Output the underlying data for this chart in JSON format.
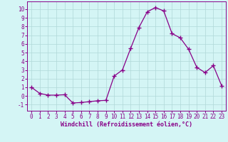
{
  "x": [
    0,
    1,
    2,
    3,
    4,
    5,
    6,
    7,
    8,
    9,
    10,
    11,
    12,
    13,
    14,
    15,
    16,
    17,
    18,
    19,
    20,
    21,
    22,
    23
  ],
  "y": [
    1.0,
    0.3,
    0.1,
    0.1,
    0.15,
    -0.8,
    -0.75,
    -0.65,
    -0.55,
    -0.5,
    2.3,
    3.0,
    5.5,
    7.9,
    9.7,
    10.2,
    9.8,
    7.2,
    6.7,
    5.4,
    3.3,
    2.7,
    3.5,
    1.2
  ],
  "line_color": "#880088",
  "marker": "+",
  "marker_size": 4,
  "marker_lw": 1.0,
  "bg_color": "#d4f5f5",
  "grid_color": "#b0d8d8",
  "xlabel": "Windchill (Refroidissement éolien,°C)",
  "xlabel_fontsize": 6.0,
  "yticks": [
    -1,
    0,
    1,
    2,
    3,
    4,
    5,
    6,
    7,
    8,
    9,
    10
  ],
  "xlim": [
    -0.5,
    23.5
  ],
  "ylim": [
    -1.7,
    10.9
  ],
  "tick_fontsize": 5.5,
  "line_width": 0.9
}
